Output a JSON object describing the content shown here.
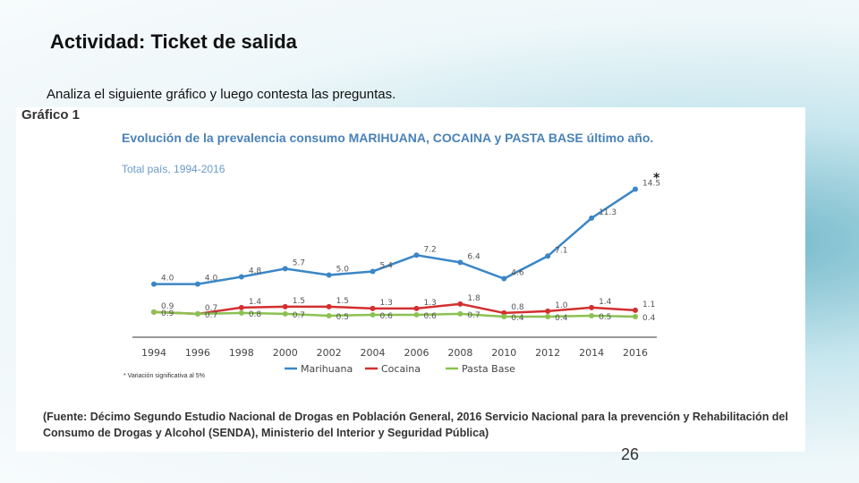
{
  "slide": {
    "title": "Actividad: Ticket de salida",
    "instruction": "Analiza el  siguiente gráfico y luego contesta las preguntas.",
    "page_number": "26"
  },
  "figure": {
    "label": "Gráfico 1",
    "note": "* Variación significativa al 5%",
    "source": "(Fuente: Décimo Segundo Estudio Nacional de Drogas en Población General, 2016 Servicio Nacional para la prevención y Rehabilitación del Consumo de Drogas y Alcohol (SENDA), Ministerio del Interior y Seguridad Pública)"
  },
  "chart_data": {
    "type": "line",
    "title": "Evolución de la prevalencia consumo MARIHUANA, COCAINA y PASTA BASE último año.",
    "subtitle": "Total país, 1994-2016",
    "significance_marker": "*",
    "categories": [
      "1994",
      "1996",
      "1998",
      "2000",
      "2002",
      "2004",
      "2006",
      "2008",
      "2010",
      "2012",
      "2014",
      "2016"
    ],
    "series": [
      {
        "name": "Marihuana",
        "color": "#3b86c6",
        "values": [
          4.0,
          4.0,
          4.8,
          5.7,
          5.0,
          5.4,
          7.2,
          6.4,
          4.6,
          7.1,
          11.3,
          14.5
        ],
        "value_labels": [
          "4.0",
          "4.0",
          "4.8",
          "5.7",
          "5.0",
          "5.4",
          "7.2",
          "6.4",
          "4.6",
          "7.1",
          "11.3",
          "14.5"
        ]
      },
      {
        "name": "Cocaina",
        "color": "#d32f2f",
        "values": [
          0.9,
          0.7,
          1.4,
          1.5,
          1.5,
          1.3,
          1.3,
          1.8,
          0.8,
          1.0,
          1.4,
          1.1
        ],
        "value_labels": [
          "0.9",
          "0.7",
          "1.4",
          "1.5",
          "1.5",
          "1.3",
          "1.3",
          "1.8",
          "0.8",
          "1.0",
          "1.4",
          "1.1"
        ]
      },
      {
        "name": "Pasta Base",
        "color": "#8cc152",
        "values": [
          0.9,
          0.7,
          0.8,
          0.7,
          0.5,
          0.6,
          0.6,
          0.7,
          0.4,
          0.4,
          0.5,
          0.4
        ],
        "value_labels": [
          "0.9",
          "0.7",
          "0.8",
          "0.7",
          "0.5",
          "0.6",
          "0.6",
          "0.7",
          "0.4",
          "0.4",
          "0.5",
          "0.4"
        ]
      }
    ]
  }
}
